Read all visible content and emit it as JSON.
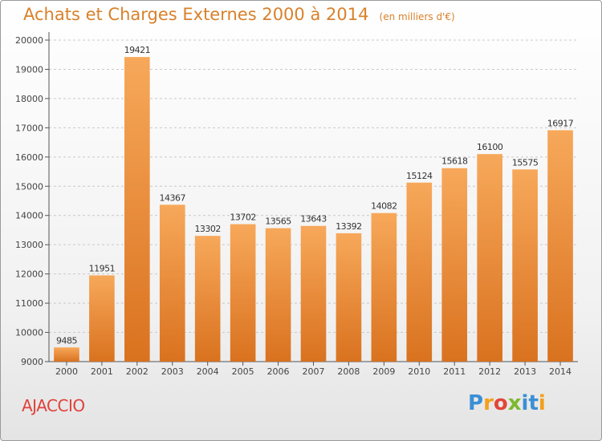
{
  "header": {
    "title": "Achats et Charges Externes 2000 à 2014",
    "subtitle": "(en milliers d'€)"
  },
  "footer": {
    "commune": "AJACCIO",
    "logo_text": "Proxiti"
  },
  "colors": {
    "bar_top": "#f7a85a",
    "bar_bottom": "#d9721f",
    "title": "#d9812a",
    "commune": "#e0413b"
  },
  "chart_data": {
    "type": "bar",
    "title": "Achats et Charges Externes 2000 à 2014",
    "subtitle": "(en milliers d'€)",
    "xlabel": "",
    "ylabel": "",
    "categories": [
      "2000",
      "2001",
      "2002",
      "2003",
      "2004",
      "2005",
      "2006",
      "2007",
      "2008",
      "2009",
      "2010",
      "2011",
      "2012",
      "2013",
      "2014"
    ],
    "values": [
      9485,
      11951,
      19421,
      14367,
      13302,
      13702,
      13565,
      13643,
      13392,
      14082,
      15124,
      15618,
      16100,
      15575,
      16917
    ],
    "ylim": [
      9000,
      20000
    ],
    "yticks": [
      9000,
      10000,
      11000,
      12000,
      13000,
      14000,
      15000,
      16000,
      17000,
      18000,
      19000,
      20000
    ],
    "grid": "horizontal-dashed",
    "legend": "none"
  }
}
